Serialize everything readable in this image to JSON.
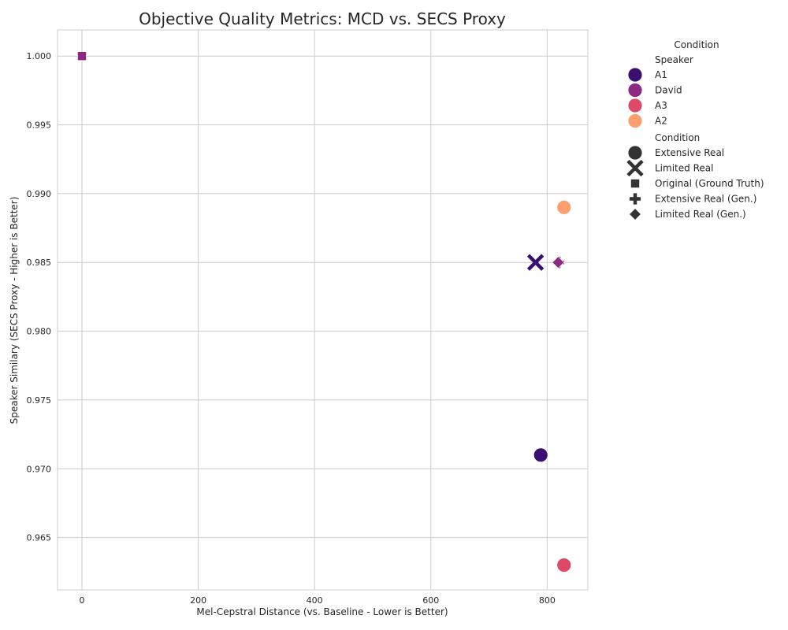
{
  "chart_data": {
    "type": "scatter",
    "title": "Objective Quality Metrics: MCD vs. SECS Proxy",
    "xlabel": "Mel-Cepstral Distance (vs. Baseline - Lower is Better)",
    "ylabel": "Speaker Similary (SECS Proxy - Higher is Better)",
    "xlim": [
      -42,
      870
    ],
    "ylim": [
      0.9612,
      1.0019
    ],
    "xticks": [
      0,
      200,
      400,
      600,
      800
    ],
    "yticks": [
      0.965,
      0.97,
      0.975,
      0.98,
      0.985,
      0.99,
      0.995,
      1.0
    ],
    "ytick_labels": [
      "0.965",
      "0.970",
      "0.975",
      "0.980",
      "0.985",
      "0.990",
      "0.995",
      "1.000"
    ],
    "grid": true,
    "legend": {
      "placement": "outside-right",
      "title": "Condition",
      "hue_title": "Speaker",
      "hue_entries": [
        {
          "label": "A1",
          "color": "#3b0f70"
        },
        {
          "label": "David",
          "color": "#8c2981"
        },
        {
          "label": "A3",
          "color": "#de4968"
        },
        {
          "label": "A2",
          "color": "#fe9f6d"
        }
      ],
      "style_title": "Condition",
      "style_entries": [
        {
          "label": "Extensive Real",
          "marker": "circle"
        },
        {
          "label": "Limited Real",
          "marker": "x"
        },
        {
          "label": "Original (Ground Truth)",
          "marker": "square"
        },
        {
          "label": "Extensive Real (Gen.)",
          "marker": "plus"
        },
        {
          "label": "Limited Real (Gen.)",
          "marker": "diamond"
        }
      ]
    },
    "points": [
      {
        "speaker": "David",
        "condition": "Original (Ground Truth)",
        "x": 0,
        "y": 1.0
      },
      {
        "speaker": "A2",
        "condition": "Extensive Real",
        "x": 829,
        "y": 0.989
      },
      {
        "speaker": "A1",
        "condition": "Limited Real",
        "x": 780,
        "y": 0.985
      },
      {
        "speaker": "David",
        "condition": "Extensive Real (Gen.)",
        "x": 820,
        "y": 0.985
      },
      {
        "speaker": "David",
        "condition": "Limited Real (Gen.)",
        "x": 819,
        "y": 0.985
      },
      {
        "speaker": "A1",
        "condition": "Extensive Real",
        "x": 789,
        "y": 0.971
      },
      {
        "speaker": "A3",
        "condition": "Extensive Real",
        "x": 829,
        "y": 0.963
      }
    ]
  }
}
